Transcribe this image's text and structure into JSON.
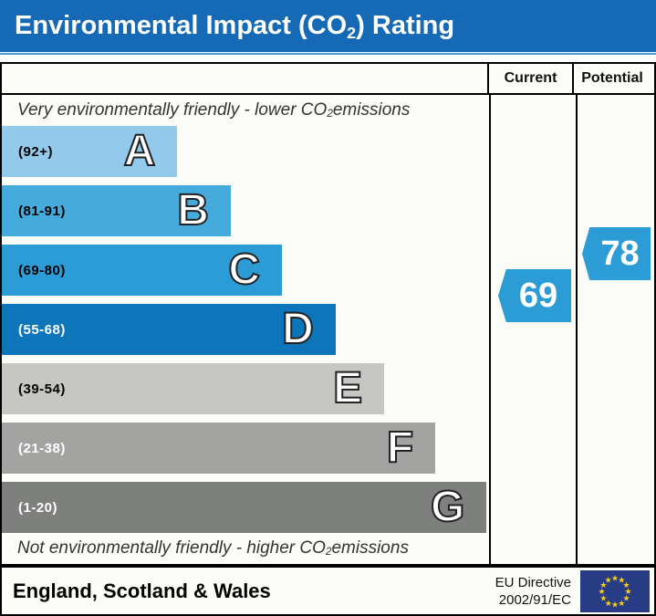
{
  "title": {
    "prefix": "Environmental Impact (CO",
    "sub": "2",
    "suffix": ") Rating"
  },
  "header": {
    "current": "Current",
    "potential": "Potential"
  },
  "notes": {
    "top": {
      "prefix": "Very environmentally friendly - lower CO",
      "sub": "2",
      "suffix": " emissions"
    },
    "bottom": {
      "prefix": "Not environmentally friendly - higher CO",
      "sub": "2",
      "suffix": " emissions"
    }
  },
  "footer": {
    "region": "England, Scotland & Wales",
    "directive_line1": "EU Directive",
    "directive_line2": "2002/91/EC",
    "flag_icon": "eu-flag-icon",
    "flag_blue": "#273c85",
    "star_yellow": "#f7d115"
  },
  "colors": {
    "title_bar": "#1569b5",
    "title_accent": "#4e9ad2"
  },
  "chart_data": {
    "type": "bar",
    "title": "Environmental Impact (CO2) Rating",
    "xlabel": "",
    "ylabel": "",
    "legend_position": "none",
    "categories": [
      "A",
      "B",
      "C",
      "D",
      "E",
      "F",
      "G"
    ],
    "bands": [
      {
        "letter": "A",
        "range": "(92+)",
        "min": 92,
        "max": 100,
        "width_pct": 36,
        "color": "#93c9ea",
        "label_color": "#000000"
      },
      {
        "letter": "B",
        "range": "(81-91)",
        "min": 81,
        "max": 91,
        "width_pct": 47,
        "color": "#45abdd",
        "label_color": "#000000"
      },
      {
        "letter": "C",
        "range": "(69-80)",
        "min": 69,
        "max": 80,
        "width_pct": 57.5,
        "color": "#2b9cd6",
        "label_color": "#000000"
      },
      {
        "letter": "D",
        "range": "(55-68)",
        "min": 55,
        "max": 68,
        "width_pct": 68.5,
        "color": "#0d76ba",
        "label_color": "#ffffff"
      },
      {
        "letter": "E",
        "range": "(39-54)",
        "min": 39,
        "max": 54,
        "width_pct": 78.5,
        "color": "#c6c7c3",
        "label_color": "#000000"
      },
      {
        "letter": "F",
        "range": "(21-38)",
        "min": 21,
        "max": 38,
        "width_pct": 89,
        "color": "#a3a4a1",
        "label_color": "#ffffff"
      },
      {
        "letter": "G",
        "range": "(1-20)",
        "min": 1,
        "max": 20,
        "width_pct": 99.5,
        "color": "#7e807d",
        "label_color": "#ffffff"
      }
    ],
    "current": {
      "value": "69",
      "band": "C",
      "color": "#2b9cd6"
    },
    "potential": {
      "value": "78",
      "band": "C",
      "color": "#2b9cd6"
    }
  }
}
